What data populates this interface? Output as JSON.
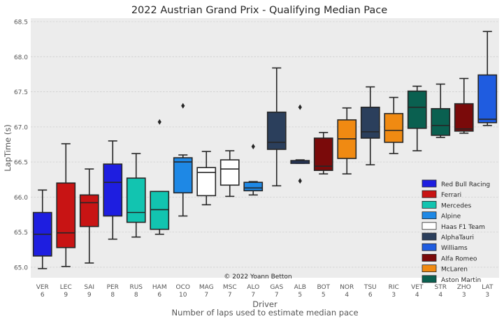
{
  "chart_data": {
    "type": "box",
    "title": "2022 Austrian Grand Prix - Qualifying Median Pace",
    "xlabel": "Driver",
    "xlabel2": "Number of laps used to estimate median pace",
    "ylabel": "LapTime (s)",
    "ylim": [
      64.85,
      68.55
    ],
    "yticks": [
      "65.0",
      "65.5",
      "66.0",
      "66.5",
      "67.0",
      "67.5",
      "68.0",
      "68.5"
    ],
    "grid": true,
    "legend_position": "bottom-right",
    "annotation": "© 2022 Yoann Betton",
    "teams": [
      {
        "name": "Red Bull Racing",
        "color": "#1e1ee0"
      },
      {
        "name": "Ferrari",
        "color": "#c81414"
      },
      {
        "name": "Mercedes",
        "color": "#12c4b0"
      },
      {
        "name": "Alpine",
        "color": "#1e88e5"
      },
      {
        "name": "Haas F1 Team",
        "color": "#ffffff"
      },
      {
        "name": "AlphaTauri",
        "color": "#2b3f5c"
      },
      {
        "name": "Williams",
        "color": "#1f5ce0"
      },
      {
        "name": "Alfa Romeo",
        "color": "#7a0a0a"
      },
      {
        "name": "McLaren",
        "color": "#f08a12"
      },
      {
        "name": "Aston Martin",
        "color": "#0a6050"
      }
    ],
    "drivers": [
      {
        "driver": "VER",
        "laps": "6",
        "team": 0,
        "whislo": 64.98,
        "q1": 65.16,
        "med": 65.47,
        "q3": 65.78,
        "whishi": 66.1,
        "fliers": []
      },
      {
        "driver": "LEC",
        "laps": "9",
        "team": 1,
        "whislo": 65.01,
        "q1": 65.28,
        "med": 65.49,
        "q3": 66.2,
        "whishi": 66.76,
        "fliers": []
      },
      {
        "driver": "SAI",
        "laps": "9",
        "team": 1,
        "whislo": 65.06,
        "q1": 65.58,
        "med": 65.92,
        "q3": 66.03,
        "whishi": 66.4,
        "fliers": []
      },
      {
        "driver": "PER",
        "laps": "8",
        "team": 0,
        "whislo": 65.4,
        "q1": 65.73,
        "med": 66.21,
        "q3": 66.47,
        "whishi": 66.8,
        "fliers": []
      },
      {
        "driver": "RUS",
        "laps": "8",
        "team": 2,
        "whislo": 65.43,
        "q1": 65.64,
        "med": 65.78,
        "q3": 66.27,
        "whishi": 66.62,
        "fliers": []
      },
      {
        "driver": "HAM",
        "laps": "6",
        "team": 2,
        "whislo": 65.47,
        "q1": 65.54,
        "med": 65.82,
        "q3": 66.08,
        "whishi": 66.08,
        "fliers": [
          67.07
        ]
      },
      {
        "driver": "OCO",
        "laps": "10",
        "team": 3,
        "whislo": 65.73,
        "q1": 66.06,
        "med": 66.5,
        "q3": 66.56,
        "whishi": 66.6,
        "fliers": [
          67.3
        ]
      },
      {
        "driver": "MAG",
        "laps": "7",
        "team": 4,
        "whislo": 65.89,
        "q1": 66.02,
        "med": 66.35,
        "q3": 66.42,
        "whishi": 66.65,
        "fliers": []
      },
      {
        "driver": "MSC",
        "laps": "7",
        "team": 4,
        "whislo": 66.01,
        "q1": 66.17,
        "med": 66.4,
        "q3": 66.53,
        "whishi": 66.66,
        "fliers": []
      },
      {
        "driver": "ALO",
        "laps": "7",
        "team": 3,
        "whislo": 66.03,
        "q1": 66.09,
        "med": 66.13,
        "q3": 66.21,
        "whishi": 66.22,
        "fliers": [
          66.72
        ]
      },
      {
        "driver": "GAS",
        "laps": "7",
        "team": 5,
        "whislo": 66.16,
        "q1": 66.68,
        "med": 66.78,
        "q3": 67.21,
        "whishi": 67.84,
        "fliers": []
      },
      {
        "driver": "ALB",
        "laps": "5",
        "team": 6,
        "whislo": 66.48,
        "q1": 66.48,
        "med": 66.5,
        "q3": 66.52,
        "whishi": 66.53,
        "fliers": [
          66.23,
          67.28
        ]
      },
      {
        "driver": "BOT",
        "laps": "5",
        "team": 7,
        "whislo": 66.33,
        "q1": 66.38,
        "med": 66.44,
        "q3": 66.84,
        "whishi": 66.92,
        "fliers": []
      },
      {
        "driver": "NOR",
        "laps": "4",
        "team": 8,
        "whislo": 66.33,
        "q1": 66.55,
        "med": 66.83,
        "q3": 67.1,
        "whishi": 67.27,
        "fliers": []
      },
      {
        "driver": "TSU",
        "laps": "6",
        "team": 5,
        "whislo": 66.46,
        "q1": 66.84,
        "med": 66.93,
        "q3": 67.28,
        "whishi": 67.57,
        "fliers": []
      },
      {
        "driver": "RIC",
        "laps": "3",
        "team": 8,
        "whislo": 66.62,
        "q1": 66.78,
        "med": 66.95,
        "q3": 67.19,
        "whishi": 67.42,
        "fliers": []
      },
      {
        "driver": "VET",
        "laps": "4",
        "team": 9,
        "whislo": 66.66,
        "q1": 66.98,
        "med": 67.28,
        "q3": 67.51,
        "whishi": 67.58,
        "fliers": []
      },
      {
        "driver": "STR",
        "laps": "4",
        "team": 9,
        "whislo": 66.85,
        "q1": 66.88,
        "med": 67.02,
        "q3": 67.26,
        "whishi": 67.61,
        "fliers": []
      },
      {
        "driver": "ZHO",
        "laps": "3",
        "team": 7,
        "whislo": 66.91,
        "q1": 66.94,
        "med": 66.97,
        "q3": 67.33,
        "whishi": 67.69,
        "fliers": []
      },
      {
        "driver": "LAT",
        "laps": "3",
        "team": 6,
        "whislo": 67.02,
        "q1": 67.06,
        "med": 67.11,
        "q3": 67.74,
        "whishi": 68.36,
        "fliers": []
      }
    ]
  }
}
